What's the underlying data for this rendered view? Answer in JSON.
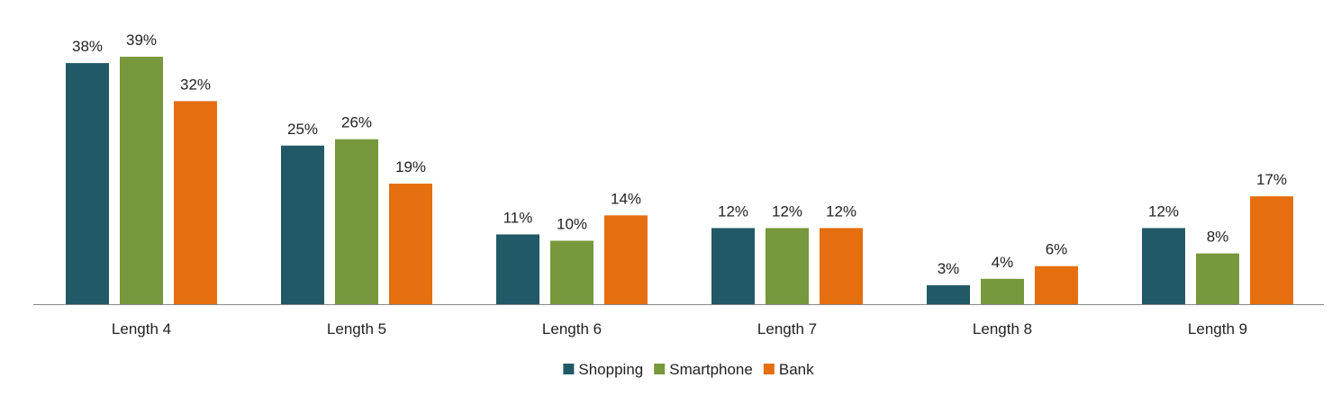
{
  "chart_data": {
    "type": "bar",
    "title": "",
    "xlabel": "",
    "ylabel": "",
    "categories": [
      "Length 4",
      "Length 5",
      "Length 6",
      "Length 7",
      "Length 8",
      "Length 9"
    ],
    "series": [
      {
        "name": "Shopping",
        "color": "#225967",
        "values": [
          38,
          25,
          11,
          12,
          3,
          12
        ],
        "labels": [
          "38%",
          "25%",
          "11%",
          "12%",
          "3%",
          "12%"
        ]
      },
      {
        "name": "Smartphone",
        "color": "#77983c",
        "values": [
          39,
          26,
          10,
          12,
          4,
          8
        ],
        "labels": [
          "39%",
          "26%",
          "10%",
          "12%",
          "4%",
          "8%"
        ]
      },
      {
        "name": "Bank",
        "color": "#e56e0e",
        "values": [
          32,
          19,
          14,
          12,
          6,
          17
        ],
        "labels": [
          "32%",
          "19%",
          "14%",
          "12%",
          "6%",
          "17%"
        ]
      }
    ],
    "ylim": [
      0,
      40
    ],
    "unit": "%",
    "grid": false,
    "legend_position": "bottom",
    "axis_color": "#888888"
  }
}
